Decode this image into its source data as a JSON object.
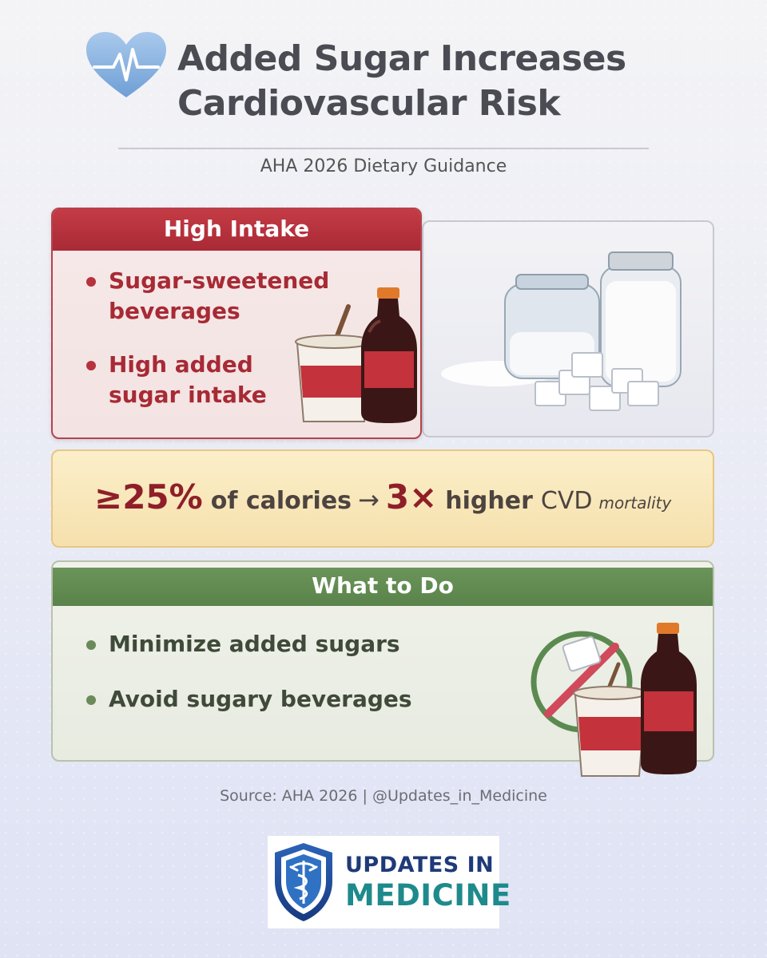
{
  "header": {
    "title_line1": "Added Sugar Increases",
    "title_line2": "Cardiovascular Risk",
    "subtitle": "AHA 2026 Dietary Guidance"
  },
  "high_intake": {
    "heading": "High Intake",
    "items": [
      {
        "line1": "Sugar-sweetened",
        "line2": "beverages"
      },
      {
        "line1": "High added",
        "line2": "sugar intake"
      }
    ],
    "illustration_icons": [
      "soda-cup-icon",
      "soda-bottle-icon",
      "sugar-jars-icon",
      "sugar-cubes-icon"
    ]
  },
  "stat": {
    "threshold": "≥25%",
    "of_calories": "of calories",
    "arrow": "→",
    "multiplier": "3×",
    "higher": "higher",
    "cvd": "CVD",
    "mortality": "mortality"
  },
  "what_to_do": {
    "heading": "What to Do",
    "items": [
      "Minimize added sugars",
      "Avoid sugary beverages"
    ],
    "illustration_icons": [
      "no-sign-icon",
      "sugar-cube-icon",
      "soda-cup-icon",
      "soda-bottle-icon"
    ]
  },
  "source": "Source: AHA 2026 | @Updates_in_Medicine",
  "logo": {
    "line1": "UPDATES IN",
    "line2": "MEDICINE",
    "icon": "caduceus-shield-icon"
  },
  "colors": {
    "red_accent": "#a92a35",
    "green_accent": "#5a834b",
    "stat_text": "#8e1f28",
    "title_text": "#4b4b53"
  }
}
